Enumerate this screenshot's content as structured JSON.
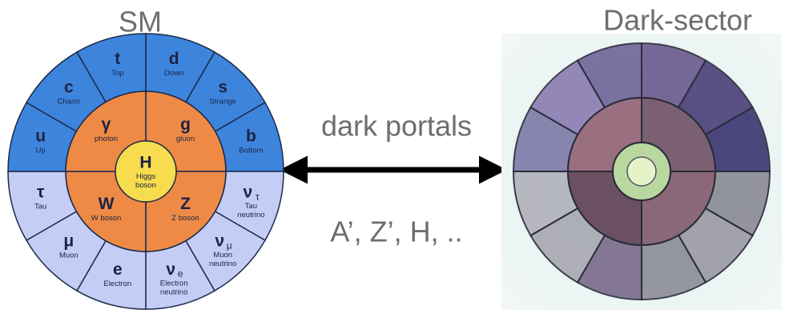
{
  "left_title": "SM",
  "right_title": "Dark-sector",
  "middle": {
    "top_label": "dark portals",
    "bottom_label": "A’, Z’, H, .."
  },
  "outer_ring": [
    {
      "symbol": "d",
      "name": [
        "Down"
      ]
    },
    {
      "symbol": "s",
      "name": [
        "Strange"
      ]
    },
    {
      "symbol": "b",
      "name": [
        "Bottom"
      ]
    },
    {
      "symbol": "ν",
      "sub": "τ",
      "name": [
        "Tau",
        "neutrino"
      ]
    },
    {
      "symbol": "ν",
      "sub": "μ",
      "name": [
        "Muon",
        "neutrino"
      ]
    },
    {
      "symbol": "ν",
      "sub": "e",
      "name": [
        "Electron",
        "neutrino"
      ]
    },
    {
      "symbol": "e",
      "name": [
        "Electron"
      ]
    },
    {
      "symbol": "μ",
      "name": [
        "Muon"
      ]
    },
    {
      "symbol": "τ",
      "name": [
        "Tau"
      ]
    },
    {
      "symbol": "u",
      "name": [
        "Up"
      ]
    },
    {
      "symbol": "c",
      "name": [
        "Charm"
      ]
    },
    {
      "symbol": "t",
      "name": [
        "Top"
      ]
    }
  ],
  "inner_ring": [
    {
      "symbol": "g",
      "name": [
        "gluon"
      ]
    },
    {
      "symbol": "Z",
      "name": [
        "Z boson"
      ]
    },
    {
      "symbol": "W",
      "name": [
        "W boson"
      ]
    },
    {
      "symbol": "γ",
      "name": [
        "photon"
      ]
    }
  ],
  "center": {
    "symbol": "H",
    "name": [
      "Higgs",
      "boson"
    ]
  }
}
